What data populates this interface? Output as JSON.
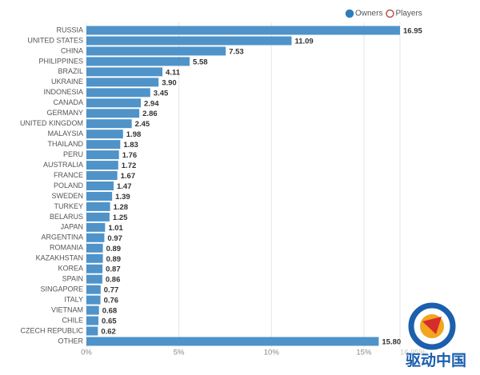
{
  "chart_data": {
    "type": "hbar",
    "categories": [
      "RUSSIA",
      "UNITED STATES",
      "CHINA",
      "PHILIPPINES",
      "BRAZIL",
      "UKRAINE",
      "INDONESIA",
      "CANADA",
      "GERMANY",
      "UNITED KINGDOM",
      "MALAYSIA",
      "THAILAND",
      "PERU",
      "AUSTRALIA",
      "FRANCE",
      "POLAND",
      "SWEDEN",
      "TURKEY",
      "BELARUS",
      "JAPAN",
      "ARGENTINA",
      "ROMANIA",
      "KAZAKHSTAN",
      "KOREA",
      "SPAIN",
      "SINGAPORE",
      "ITALY",
      "VIETNAM",
      "CHILE",
      "CZECH REPUBLIC",
      "OTHER"
    ],
    "series": [
      {
        "name": "Owners",
        "color": "#4f93c9",
        "values": [
          16.95,
          11.09,
          7.53,
          5.58,
          4.11,
          3.9,
          3.45,
          2.94,
          2.86,
          2.45,
          1.98,
          1.83,
          1.76,
          1.72,
          1.67,
          1.47,
          1.39,
          1.28,
          1.25,
          1.01,
          0.97,
          0.89,
          0.89,
          0.87,
          0.86,
          0.77,
          0.76,
          0.68,
          0.65,
          0.62,
          15.8
        ],
        "value_labels": [
          "16.95",
          "11.09",
          "7.53",
          "5.58",
          "4.11",
          "3.90",
          "3.45",
          "2.94",
          "2.86",
          "2.45",
          "1.98",
          "1.83",
          "1.76",
          "1.72",
          "1.67",
          "1.47",
          "1.39",
          "1.28",
          "1.25",
          "1.01",
          "0.97",
          "0.89",
          "0.89",
          "0.87",
          "0.86",
          "0.77",
          "0.76",
          "0.68",
          "0.65",
          "0.62",
          "15.80"
        ]
      }
    ],
    "legend_entries": [
      {
        "name": "Owners",
        "color": "#2f7dbd",
        "filled": true
      },
      {
        "name": "Players",
        "color": "#c0504d",
        "filled": false
      }
    ],
    "legend_position": "top-right",
    "xlim": [
      0,
      16.95
    ],
    "xticks": [
      {
        "value": 0,
        "label": "0%"
      },
      {
        "value": 5,
        "label": "5%"
      },
      {
        "value": 10,
        "label": "10%"
      },
      {
        "value": 15,
        "label": "15%"
      },
      {
        "value": 16.95,
        "label": "16.95%"
      }
    ],
    "grid": true,
    "watermark": "驱动中国"
  }
}
